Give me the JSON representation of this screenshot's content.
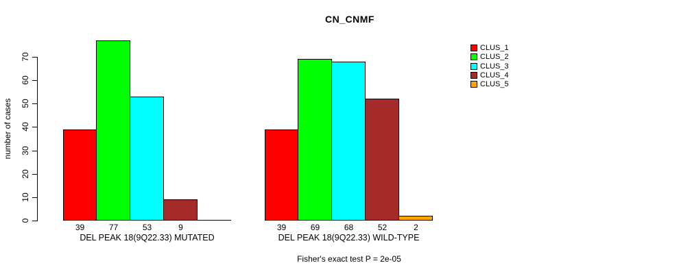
{
  "page": {
    "title": "CN_CNMF",
    "footer": "Fisher's exact test P = 2e-05"
  },
  "chart_data": {
    "type": "bar",
    "title": "CN_CNMF",
    "ylabel": "number of cases",
    "ylim": [
      0,
      77
    ],
    "y_ticks": [
      0,
      10,
      20,
      30,
      40,
      50,
      60,
      70
    ],
    "grid": false,
    "legend_position": "right",
    "legend": [
      {
        "label": "CLUS_1",
        "color": "#FF0000"
      },
      {
        "label": "CLUS_2",
        "color": "#00FF00"
      },
      {
        "label": "CLUS_3",
        "color": "#00FFFF"
      },
      {
        "label": "CLUS_4",
        "color": "#A52A2A"
      },
      {
        "label": "CLUS_5",
        "color": "#FFA500"
      }
    ],
    "groups": [
      {
        "label": "DEL PEAK 18(9Q22.33) MUTATED",
        "series": [
          "CLUS_1",
          "CLUS_2",
          "CLUS_3",
          "CLUS_4",
          "CLUS_5"
        ],
        "values": [
          39,
          77,
          53,
          9,
          0
        ],
        "bar_labels": [
          "39",
          "77",
          "53",
          "9",
          ""
        ]
      },
      {
        "label": "DEL PEAK 18(9Q22.33) WILD-TYPE",
        "series": [
          "CLUS_1",
          "CLUS_2",
          "CLUS_3",
          "CLUS_4",
          "CLUS_5"
        ],
        "values": [
          39,
          69,
          68,
          52,
          2
        ],
        "bar_labels": [
          "39",
          "69",
          "68",
          "52",
          "2"
        ]
      }
    ],
    "annotation": "Fisher's exact test P = 2e-05"
  }
}
